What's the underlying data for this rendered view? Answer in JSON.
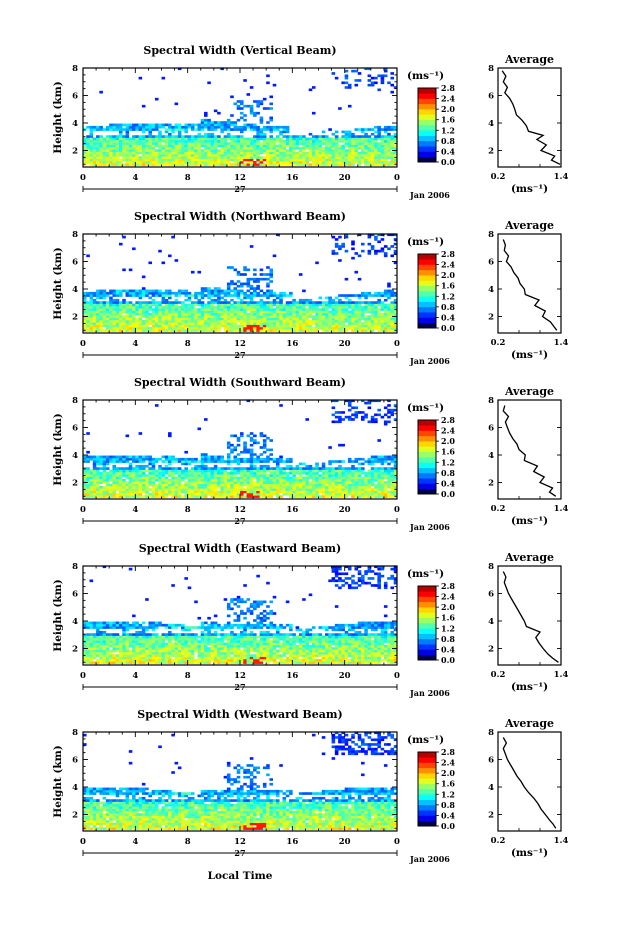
{
  "figure": {
    "xlabel": "Local Time",
    "date_label": "Jan 2006",
    "day_label": "27",
    "ylabel": "Height (km)",
    "colorbar_unit": "(ms⁻¹)",
    "profile_title": "Average",
    "profile_xlabel": "(ms⁻¹)"
  },
  "chart_data": [
    {
      "type": "heatmap",
      "title": "Spectral Width (Vertical Beam)",
      "x_ticks": [
        "0",
        "4",
        "8",
        "12",
        "16",
        "20",
        "0"
      ],
      "xlim": [
        0,
        24
      ],
      "y_ticks": [
        "2",
        "4",
        "6",
        "8"
      ],
      "ylim": [
        0.8,
        8
      ],
      "colorbar_ticks": [
        "0.0",
        "0.4",
        "0.8",
        "1.2",
        "1.6",
        "2.0",
        "2.4",
        "2.8"
      ],
      "colorbar_range": [
        0,
        2.8
      ],
      "profile": {
        "xlim": [
          0.2,
          1.4
        ],
        "x_ticks": [
          "0.2",
          "1.4"
        ],
        "y_ticks": [
          "2",
          "4",
          "6",
          "8"
        ],
        "ylim": [
          0.8,
          8
        ],
        "heights": [
          1.0,
          1.3,
          1.6,
          2.0,
          2.4,
          2.8,
          3.1,
          3.4,
          3.8,
          4.2,
          4.6,
          5.0,
          5.4,
          5.8,
          6.2,
          6.6,
          7.0,
          7.4,
          7.8
        ],
        "values": [
          1.38,
          1.22,
          1.28,
          1.02,
          1.12,
          0.94,
          1.06,
          0.78,
          0.74,
          0.66,
          0.55,
          0.52,
          0.48,
          0.42,
          0.33,
          0.38,
          0.3,
          0.35,
          0.28
        ]
      }
    },
    {
      "type": "heatmap",
      "title": "Spectral Width (Northward Beam)",
      "x_ticks": [
        "0",
        "4",
        "8",
        "12",
        "16",
        "20",
        "0"
      ],
      "xlim": [
        0,
        24
      ],
      "y_ticks": [
        "2",
        "4",
        "6",
        "8"
      ],
      "ylim": [
        0.8,
        8
      ],
      "colorbar_ticks": [
        "0.0",
        "0.4",
        "0.8",
        "1.2",
        "1.6",
        "2.0",
        "2.4",
        "2.8"
      ],
      "colorbar_range": [
        0,
        2.8
      ],
      "profile": {
        "xlim": [
          0.2,
          1.4
        ],
        "x_ticks": [
          "0.2",
          "1.4"
        ],
        "y_ticks": [
          "2",
          "4",
          "6",
          "8"
        ],
        "ylim": [
          0.8,
          8
        ],
        "heights": [
          1.0,
          1.3,
          1.6,
          2.0,
          2.4,
          2.8,
          3.2,
          3.6,
          4.0,
          4.4,
          4.8,
          5.2,
          5.6,
          6.0,
          6.4,
          6.8,
          7.2,
          7.6
        ],
        "values": [
          1.32,
          1.26,
          1.2,
          1.05,
          1.1,
          0.9,
          0.98,
          0.72,
          0.7,
          0.62,
          0.58,
          0.5,
          0.45,
          0.36,
          0.4,
          0.32,
          0.34,
          0.3
        ]
      }
    },
    {
      "type": "heatmap",
      "title": "Spectral Width (Southward Beam)",
      "x_ticks": [
        "0",
        "4",
        "8",
        "12",
        "16",
        "20",
        "0"
      ],
      "xlim": [
        0,
        24
      ],
      "y_ticks": [
        "2",
        "4",
        "6",
        "8"
      ],
      "ylim": [
        0.8,
        8
      ],
      "colorbar_ticks": [
        "0.0",
        "0.4",
        "0.8",
        "1.2",
        "1.6",
        "2.0",
        "2.4",
        "2.8"
      ],
      "colorbar_range": [
        0,
        2.8
      ],
      "profile": {
        "xlim": [
          0.2,
          1.4
        ],
        "x_ticks": [
          "0.2",
          "1.4"
        ],
        "y_ticks": [
          "2",
          "4",
          "6",
          "8"
        ],
        "ylim": [
          0.8,
          8
        ],
        "heights": [
          1.0,
          1.3,
          1.6,
          2.0,
          2.4,
          2.8,
          3.2,
          3.6,
          4.0,
          4.4,
          4.8,
          5.2,
          5.6,
          6.0,
          6.4,
          6.8,
          7.2,
          7.6
        ],
        "values": [
          1.3,
          1.18,
          1.24,
          1.0,
          1.08,
          0.88,
          0.95,
          0.7,
          0.72,
          0.6,
          0.56,
          0.48,
          0.42,
          0.38,
          0.34,
          0.4,
          0.3,
          0.33
        ]
      }
    },
    {
      "type": "heatmap",
      "title": "Spectral Width (Eastward Beam)",
      "x_ticks": [
        "0",
        "4",
        "8",
        "12",
        "16",
        "20",
        "0"
      ],
      "xlim": [
        0,
        24
      ],
      "y_ticks": [
        "2",
        "4",
        "6",
        "8"
      ],
      "ylim": [
        0.8,
        8
      ],
      "colorbar_ticks": [
        "0.0",
        "0.4",
        "0.8",
        "1.2",
        "1.6",
        "2.0",
        "2.4",
        "2.8"
      ],
      "colorbar_range": [
        0,
        2.8
      ],
      "profile": {
        "xlim": [
          0.2,
          1.4
        ],
        "x_ticks": [
          "0.2",
          "1.4"
        ],
        "y_ticks": [
          "2",
          "4",
          "6",
          "8"
        ],
        "ylim": [
          0.8,
          8
        ],
        "heights": [
          1.0,
          1.3,
          1.6,
          2.0,
          2.4,
          2.8,
          3.2,
          3.6,
          4.0,
          4.4,
          4.8,
          5.2,
          5.6,
          6.0,
          6.4,
          6.8,
          7.2,
          7.6
        ],
        "values": [
          1.35,
          1.24,
          1.15,
          1.06,
          0.98,
          0.92,
          1.0,
          0.74,
          0.7,
          0.64,
          0.58,
          0.52,
          0.46,
          0.4,
          0.36,
          0.32,
          0.35,
          0.3
        ]
      }
    },
    {
      "type": "heatmap",
      "title": "Spectral Width (Westward Beam)",
      "x_ticks": [
        "0",
        "4",
        "8",
        "12",
        "16",
        "20",
        "0"
      ],
      "xlim": [
        0,
        24
      ],
      "y_ticks": [
        "2",
        "4",
        "6",
        "8"
      ],
      "ylim": [
        0.8,
        8
      ],
      "colorbar_ticks": [
        "0.0",
        "0.4",
        "0.8",
        "1.2",
        "1.6",
        "2.0",
        "2.4",
        "2.8"
      ],
      "colorbar_range": [
        0,
        2.8
      ],
      "profile": {
        "xlim": [
          0.2,
          1.4
        ],
        "x_ticks": [
          "0.2",
          "1.4"
        ],
        "y_ticks": [
          "2",
          "4",
          "6",
          "8"
        ],
        "ylim": [
          0.8,
          8
        ],
        "heights": [
          1.0,
          1.3,
          1.6,
          2.0,
          2.4,
          2.8,
          3.2,
          3.6,
          4.0,
          4.4,
          4.8,
          5.2,
          5.6,
          6.0,
          6.4,
          6.8,
          7.2,
          7.6
        ],
        "values": [
          1.3,
          1.25,
          1.18,
          1.1,
          1.02,
          0.96,
          0.88,
          0.78,
          0.7,
          0.64,
          0.56,
          0.5,
          0.44,
          0.38,
          0.34,
          0.3,
          0.36,
          0.3
        ]
      }
    }
  ]
}
